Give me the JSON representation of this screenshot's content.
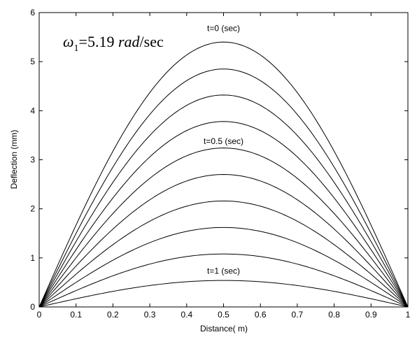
{
  "chart_data": {
    "type": "line",
    "xlabel": "Distance( m)",
    "ylabel": "Deflection (mm)",
    "xlim": [
      0,
      1
    ],
    "ylim": [
      0,
      6
    ],
    "xticks": [
      "0",
      "0.1",
      "0.2",
      "0.3",
      "0.4",
      "0.5",
      "0.6",
      "0.7",
      "0.8",
      "0.9",
      "1"
    ],
    "yticks": [
      "0",
      "1",
      "2",
      "3",
      "4",
      "5",
      "6"
    ],
    "grid": false,
    "shape": "sine half-wave, peak at x = 0.5",
    "series": [
      {
        "peak": 5.4
      },
      {
        "peak": 4.85
      },
      {
        "peak": 4.32
      },
      {
        "peak": 3.78
      },
      {
        "peak": 3.24
      },
      {
        "peak": 2.7
      },
      {
        "peak": 2.16
      },
      {
        "peak": 1.62
      },
      {
        "peak": 1.08
      },
      {
        "peak": 0.54
      }
    ],
    "annotations": [
      {
        "text": "t=0 (sec)",
        "x": 0.5,
        "y": 5.62
      },
      {
        "text": "t=0.5 (sec)",
        "x": 0.5,
        "y": 3.32
      },
      {
        "text": "t=1 (sec)",
        "x": 0.5,
        "y": 0.68
      }
    ],
    "equation": {
      "symbol": "ω",
      "subscript": "1",
      "rest": "=5.19 ",
      "unit_italic": "rad",
      "unit_tail": "/sec"
    }
  }
}
